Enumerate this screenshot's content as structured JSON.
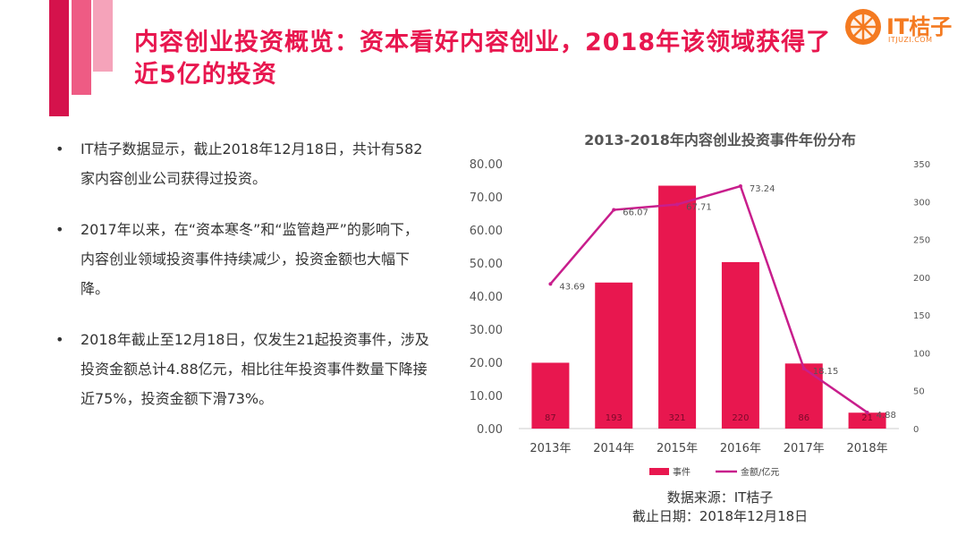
{
  "header": {
    "title": "内容创业投资概览：资本看好内容创业，2018年该领域获得了近5亿的投资",
    "logo_text": "IT桔子",
    "logo_sub": "ITJUZI.COM"
  },
  "bullets": [
    "IT桔子数据显示，截止2018年12月18日，共计有582家内容创业公司获得过投资。",
    "2017年以来，在“资本寒冬”和“监管趋严”的影响下，内容创业领域投资事件持续减少，投资金额也大幅下降。",
    "2018年截止至12月18日，仅发生21起投资事件，涉及投资金额总计4.88亿元，相比往年投资事件数量下降接近75%，投资金额下滑73%。"
  ],
  "bullet_marker": "•",
  "chart_data": {
    "type": "bar+line",
    "title": "2013-2018年内容创业投资事件年份分布",
    "categories": [
      "2013年",
      "2014年",
      "2015年",
      "2016年",
      "2017年",
      "2018年"
    ],
    "series": [
      {
        "name": "事件",
        "type": "bar",
        "axis": "right",
        "values": [
          87,
          193,
          321,
          220,
          86,
          21
        ],
        "labels": [
          "87",
          "193",
          "321",
          "220",
          "86",
          "21"
        ]
      },
      {
        "name": "金额/亿元",
        "type": "line",
        "axis": "left",
        "values": [
          43.69,
          66.07,
          67.71,
          73.24,
          18.15,
          4.88
        ],
        "labels": [
          "43.69",
          "66.07",
          "67.71",
          "73.24",
          "18.15",
          "4.88"
        ]
      }
    ],
    "left_axis": {
      "min": 0,
      "max": 80,
      "ticks": [
        "0.00",
        "10.00",
        "20.00",
        "30.00",
        "40.00",
        "50.00",
        "60.00",
        "70.00",
        "80.00"
      ]
    },
    "right_axis": {
      "min": 0,
      "max": 350,
      "ticks": [
        "0",
        "50",
        "100",
        "150",
        "200",
        "250",
        "300",
        "350"
      ]
    },
    "colors": {
      "bar": "#e8174f",
      "line": "#c81e8c"
    },
    "legend_position": "bottom"
  },
  "footer": {
    "source": "数据来源：IT桔子",
    "date": "截止日期：2018年12月18日"
  }
}
